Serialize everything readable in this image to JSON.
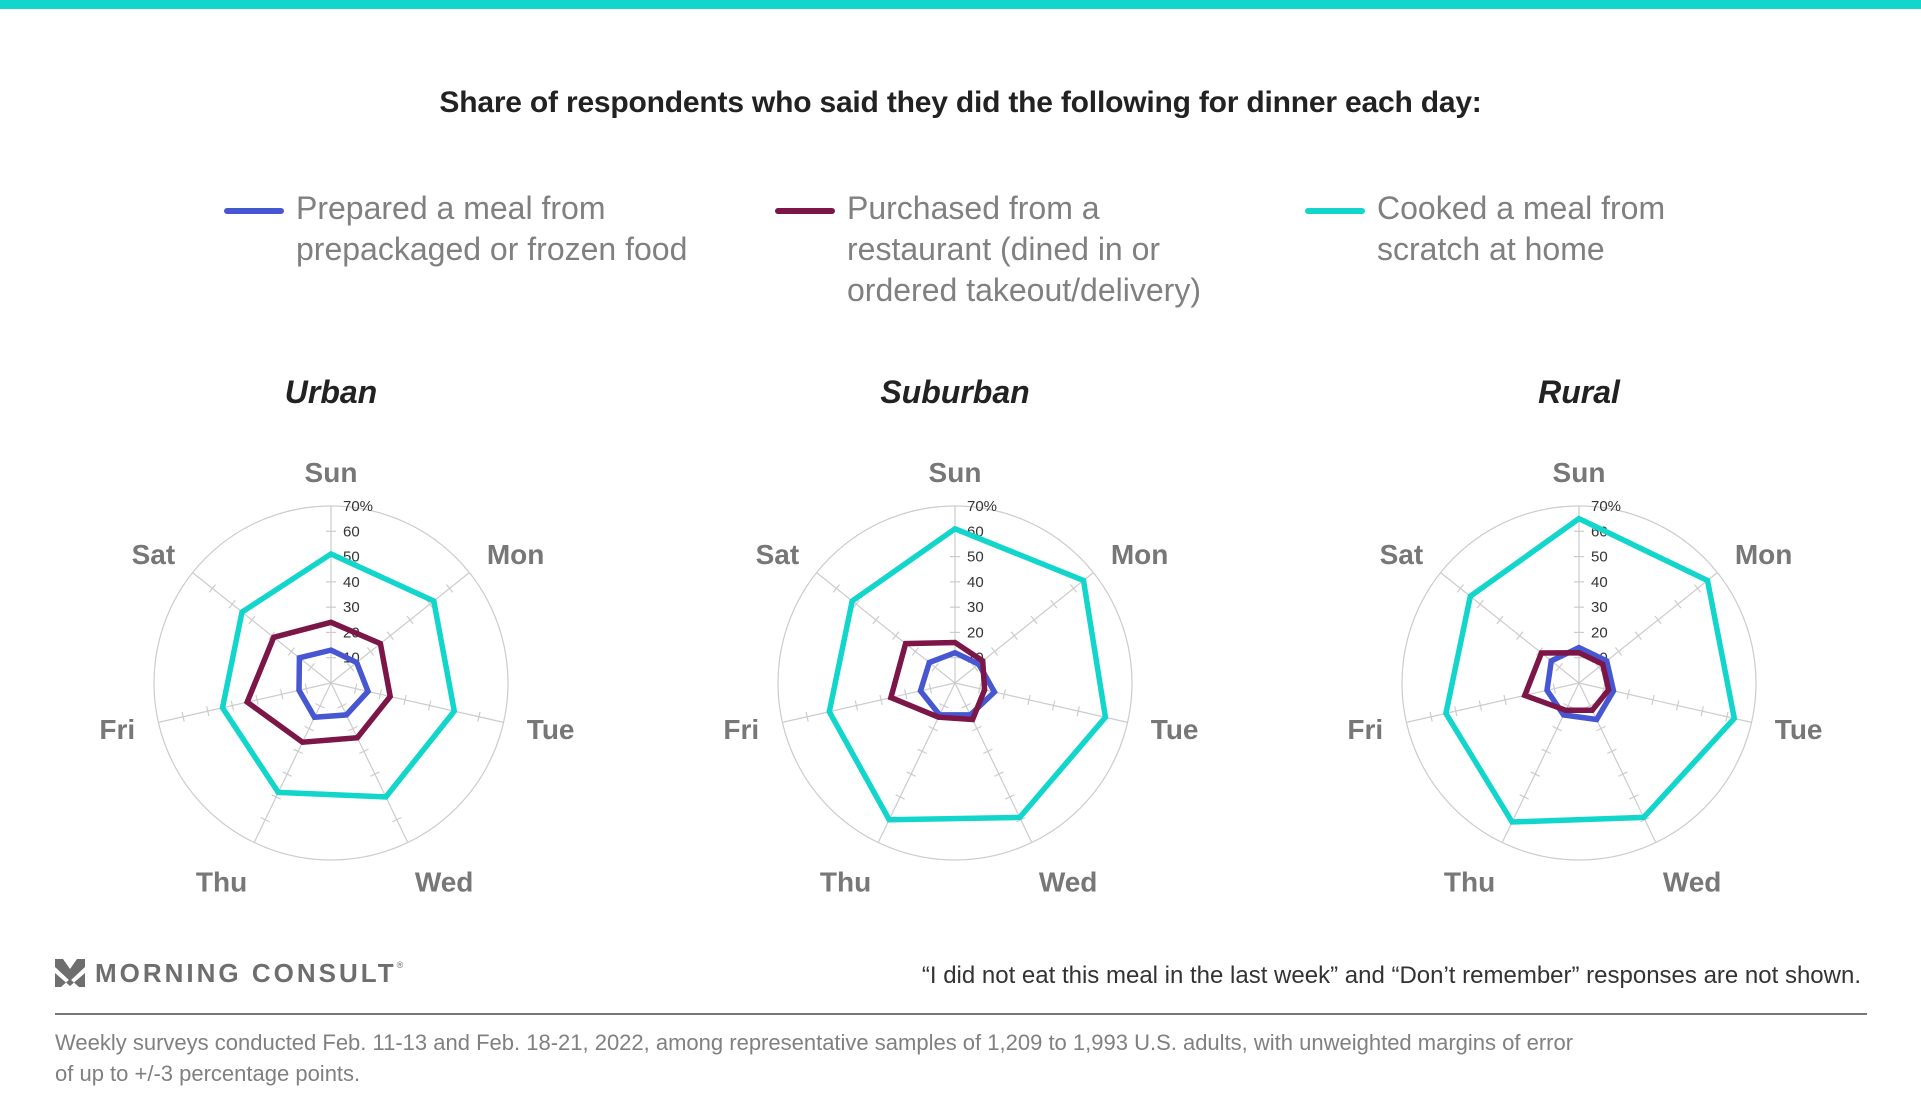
{
  "colors": {
    "top_bar": "#12d6cc",
    "prepared": "#4757d1",
    "purchased": "#7d1648",
    "cooked": "#12d6cc",
    "grid": "#cccccc"
  },
  "header": {
    "title": "Share of respondents who said they did the following for dinner each day:"
  },
  "legend": [
    {
      "key": "prepared",
      "lines": [
        "Prepared a meal from",
        "prepackaged or frozen food"
      ]
    },
    {
      "key": "purchased",
      "lines": [
        "Purchased from a",
        "restaurant (dined in or",
        "ordered takeout/delivery)"
      ]
    },
    {
      "key": "cooked",
      "lines": [
        "Cooked a meal from",
        "scratch at home"
      ]
    }
  ],
  "chart_data": [
    {
      "type": "radar",
      "title": "Urban",
      "categories": [
        "Sun",
        "Mon",
        "Tue",
        "Wed",
        "Thu",
        "Fri",
        "Sat"
      ],
      "rlim": [
        0,
        70
      ],
      "r_ticks": [
        "10",
        "20",
        "30",
        "40",
        "50",
        "60",
        "70%"
      ],
      "series": [
        {
          "name": "Prepared a meal from prepackaged or frozen food",
          "key": "prepared",
          "values": [
            13,
            13,
            15,
            14,
            15,
            13,
            16
          ]
        },
        {
          "name": "Purchased from a restaurant (dined in or ordered takeout/delivery)",
          "key": "purchased",
          "values": [
            24,
            25,
            24,
            24,
            26,
            34,
            29
          ]
        },
        {
          "name": "Cooked a meal from scratch at home",
          "key": "cooked",
          "values": [
            51,
            52,
            50,
            50,
            48,
            44,
            45
          ]
        }
      ]
    },
    {
      "type": "radar",
      "title": "Suburban",
      "categories": [
        "Sun",
        "Mon",
        "Tue",
        "Wed",
        "Thu",
        "Fri",
        "Sat"
      ],
      "rlim": [
        0,
        70
      ],
      "r_ticks": [
        "10",
        "20",
        "30",
        "40",
        "50",
        "60",
        "70%"
      ],
      "series": [
        {
          "name": "Prepared a meal from prepackaged or frozen food",
          "key": "prepared",
          "values": [
            12,
            12,
            16,
            14,
            14,
            14,
            13
          ]
        },
        {
          "name": "Purchased from a restaurant (dined in or ordered takeout/delivery)",
          "key": "purchased",
          "values": [
            16,
            14,
            12,
            16,
            15,
            26,
            25
          ]
        },
        {
          "name": "Cooked a meal from scratch at home",
          "key": "cooked",
          "values": [
            61,
            65,
            61,
            59,
            60,
            51,
            52
          ]
        }
      ]
    },
    {
      "type": "radar",
      "title": "Rural",
      "categories": [
        "Sun",
        "Mon",
        "Tue",
        "Wed",
        "Thu",
        "Fri",
        "Sat"
      ],
      "rlim": [
        0,
        70
      ],
      "r_ticks": [
        "10",
        "20",
        "30",
        "40",
        "50",
        "60",
        "70%"
      ],
      "series": [
        {
          "name": "Prepared a meal from prepackaged or frozen food",
          "key": "prepared",
          "values": [
            14,
            14,
            14,
            16,
            14,
            13,
            14
          ]
        },
        {
          "name": "Purchased from a restaurant (dined in or ordered takeout/delivery)",
          "key": "purchased",
          "values": [
            12,
            12,
            12,
            12,
            12,
            22,
            19
          ]
        },
        {
          "name": "Cooked a meal from scratch at home",
          "key": "cooked",
          "values": [
            65,
            65,
            63,
            59,
            61,
            54,
            55
          ]
        }
      ]
    }
  ],
  "footer": {
    "logo_text": "MORNING CONSULT",
    "logo_mark": "®",
    "note": "“I did not eat this meal in the last week” and “Don’t remember” responses are not shown.",
    "methodology_lines": [
      "Weekly surveys conducted Feb. 11-13 and Feb. 18-21, 2022, among representative samples of 1,209 to 1,993 U.S. adults, with unweighted margins of error",
      "of up to +/-3 percentage points."
    ]
  }
}
